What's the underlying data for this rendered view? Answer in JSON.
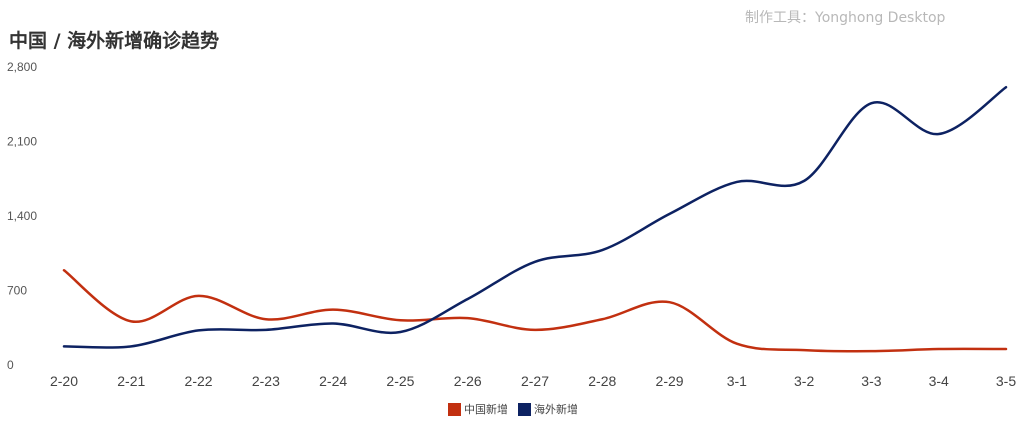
{
  "watermark": "制作工具：Yonghong Desktop",
  "chart_data": {
    "type": "line",
    "title": "中国 / 海外新增确诊趋势",
    "categories": [
      "2-20",
      "2-21",
      "2-22",
      "2-23",
      "2-24",
      "2-25",
      "2-26",
      "2-27",
      "2-28",
      "2-29",
      "3-1",
      "3-2",
      "3-3",
      "3-4",
      "3-5"
    ],
    "y_ticks": [
      "0",
      "700",
      "1,400",
      "2,100",
      "2,800"
    ],
    "ylim": [
      0,
      2800
    ],
    "grid": false,
    "legend_position": "bottom",
    "series": [
      {
        "name": "中国新增",
        "color": "#c23010",
        "values": [
          890,
          410,
          650,
          430,
          520,
          420,
          440,
          330,
          430,
          590,
          200,
          140,
          130,
          150,
          150
        ]
      },
      {
        "name": "海外新增",
        "color": "#0d2262",
        "values": [
          175,
          175,
          325,
          330,
          390,
          310,
          620,
          970,
          1080,
          1420,
          1720,
          1730,
          2460,
          2170,
          2610
        ]
      }
    ]
  }
}
